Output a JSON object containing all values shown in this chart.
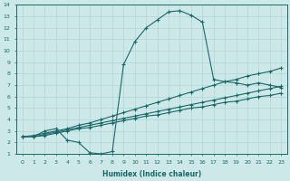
{
  "xlabel": "Humidex (Indice chaleur)",
  "xlim": [
    -0.5,
    23.5
  ],
  "ylim": [
    1,
    14
  ],
  "xticks": [
    0,
    1,
    2,
    3,
    4,
    5,
    6,
    7,
    8,
    9,
    10,
    11,
    12,
    13,
    14,
    15,
    16,
    17,
    18,
    19,
    20,
    21,
    22,
    23
  ],
  "yticks": [
    1,
    2,
    3,
    4,
    5,
    6,
    7,
    8,
    9,
    10,
    11,
    12,
    13,
    14
  ],
  "bg_color": "#cce8e8",
  "line_color": "#1a6868",
  "grid_color": "#b0d4d4",
  "line_main_x": [
    1,
    2,
    3,
    4,
    5,
    6,
    7,
    8,
    9,
    10,
    11,
    12,
    13,
    14,
    15,
    16,
    17,
    18,
    19,
    20,
    21,
    22,
    23
  ],
  "line_main_y": [
    2.5,
    3.0,
    3.2,
    2.2,
    2.0,
    1.1,
    1.0,
    1.2,
    8.8,
    10.8,
    12.0,
    12.7,
    13.4,
    13.5,
    13.1,
    12.5,
    7.5,
    7.3,
    7.2,
    7.0,
    7.2,
    7.0,
    6.8
  ],
  "line_a_x": [
    0,
    1,
    2,
    3,
    4,
    5,
    6,
    7,
    8,
    9,
    10,
    11,
    12,
    13,
    14,
    15,
    16,
    17,
    18,
    19,
    20,
    21,
    22,
    23
  ],
  "line_a_y": [
    2.5,
    2.6,
    2.8,
    3.0,
    3.2,
    3.5,
    3.7,
    4.0,
    4.3,
    4.6,
    4.9,
    5.2,
    5.5,
    5.8,
    6.1,
    6.4,
    6.7,
    7.0,
    7.3,
    7.5,
    7.8,
    8.0,
    8.2,
    8.5
  ],
  "line_b_x": [
    0,
    1,
    2,
    3,
    4,
    5,
    6,
    7,
    8,
    9,
    10,
    11,
    12,
    13,
    14,
    15,
    16,
    17,
    18,
    19,
    20,
    21,
    22,
    23
  ],
  "line_b_y": [
    2.5,
    2.5,
    2.7,
    2.9,
    3.1,
    3.3,
    3.5,
    3.7,
    3.9,
    4.1,
    4.3,
    4.5,
    4.7,
    4.9,
    5.1,
    5.3,
    5.5,
    5.7,
    5.9,
    6.1,
    6.3,
    6.5,
    6.7,
    6.9
  ],
  "line_c_x": [
    0,
    1,
    2,
    3,
    4,
    5,
    6,
    7,
    8,
    9,
    10,
    11,
    12,
    13,
    14,
    15,
    16,
    17,
    18,
    19,
    20,
    21,
    22,
    23
  ],
  "line_c_y": [
    2.5,
    2.5,
    2.6,
    2.8,
    3.0,
    3.2,
    3.3,
    3.5,
    3.7,
    3.9,
    4.1,
    4.3,
    4.4,
    4.6,
    4.8,
    5.0,
    5.1,
    5.3,
    5.5,
    5.6,
    5.8,
    6.0,
    6.1,
    6.3
  ]
}
